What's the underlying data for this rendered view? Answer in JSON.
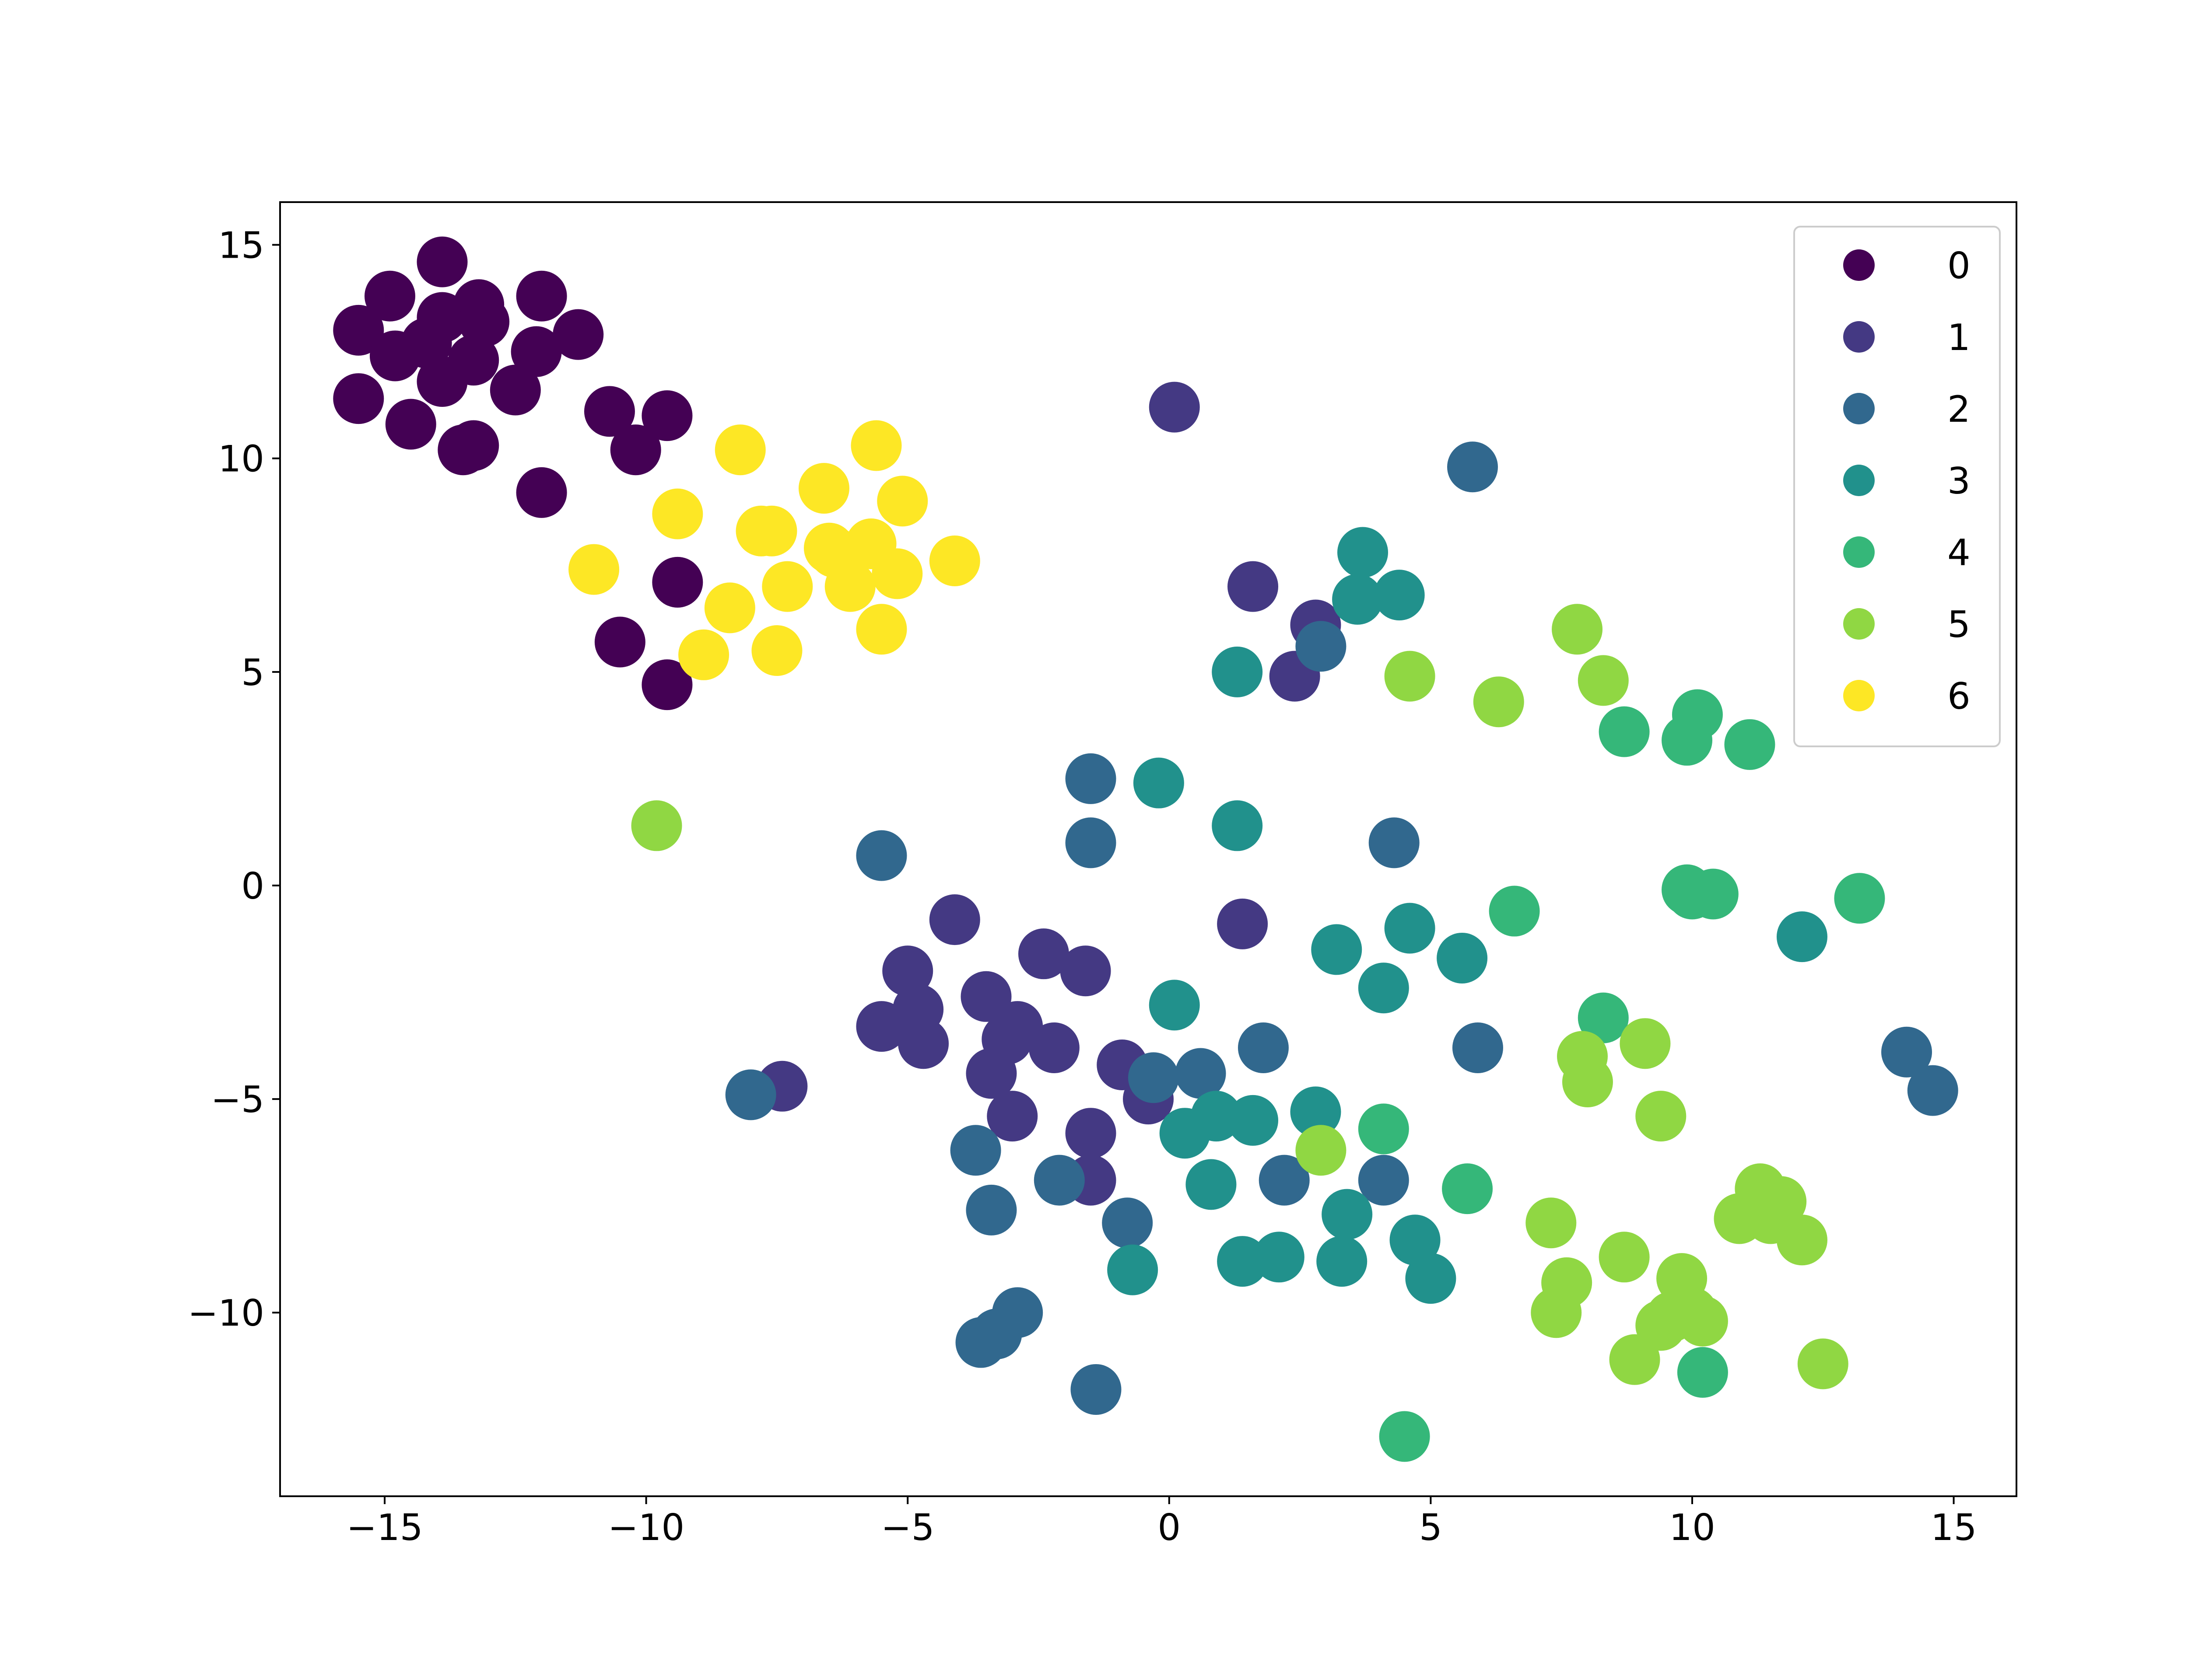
{
  "chart_data": {
    "type": "scatter",
    "title": "",
    "xlabel": "",
    "ylabel": "",
    "xlim": [
      -17,
      16.2
    ],
    "ylim": [
      -14.3,
      16
    ],
    "xticks": [
      -15,
      -10,
      -5,
      0,
      5,
      10,
      15
    ],
    "yticks": [
      -10,
      -5,
      0,
      5,
      10,
      15
    ],
    "xtick_labels": [
      "−15",
      "−10",
      "−5",
      "0",
      "5",
      "10",
      "15"
    ],
    "ytick_labels": [
      "−10",
      "−5",
      "0",
      "5",
      "10",
      "15"
    ],
    "grid": false,
    "legend_position": "top-right",
    "series": [
      {
        "name": "0",
        "color": "#440154",
        "points": [
          [
            -13.9,
            14.6
          ],
          [
            -14.9,
            13.8
          ],
          [
            -13.2,
            13.6
          ],
          [
            -12.0,
            13.8
          ],
          [
            -15.5,
            13.0
          ],
          [
            -13.9,
            13.3
          ],
          [
            -13.1,
            13.2
          ],
          [
            -11.3,
            12.9
          ],
          [
            -14.2,
            12.7
          ],
          [
            -14.8,
            12.4
          ],
          [
            -13.3,
            12.3
          ],
          [
            -12.1,
            12.5
          ],
          [
            -13.9,
            11.8
          ],
          [
            -12.5,
            11.6
          ],
          [
            -15.5,
            11.4
          ],
          [
            -14.5,
            10.8
          ],
          [
            -10.7,
            11.1
          ],
          [
            -9.6,
            11.0
          ],
          [
            -10.2,
            10.2
          ],
          [
            -13.5,
            10.2
          ],
          [
            -13.3,
            10.3
          ],
          [
            -12.0,
            9.2
          ],
          [
            -9.4,
            7.1
          ],
          [
            -10.5,
            5.7
          ],
          [
            -9.6,
            4.7
          ]
        ]
      },
      {
        "name": "1",
        "color": "#443983",
        "points": [
          [
            0.1,
            11.2
          ],
          [
            1.6,
            7.0
          ],
          [
            2.8,
            6.1
          ],
          [
            2.4,
            4.9
          ],
          [
            -7.4,
            -4.7
          ],
          [
            -4.1,
            -0.8
          ],
          [
            -5.0,
            -2.0
          ],
          [
            -4.8,
            -2.9
          ],
          [
            -5.5,
            -3.3
          ],
          [
            -4.7,
            -3.7
          ],
          [
            -3.5,
            -2.6
          ],
          [
            -2.4,
            -1.6
          ],
          [
            -1.6,
            -2.0
          ],
          [
            -2.9,
            -3.3
          ],
          [
            -3.1,
            -3.6
          ],
          [
            -2.2,
            -3.8
          ],
          [
            -3.4,
            -4.4
          ],
          [
            -0.9,
            -4.2
          ],
          [
            -3.0,
            -5.4
          ],
          [
            -0.4,
            -5.0
          ],
          [
            -1.5,
            -5.8
          ],
          [
            -1.5,
            -6.9
          ],
          [
            1.4,
            -0.9
          ]
        ]
      },
      {
        "name": "2",
        "color": "#31688e",
        "points": [
          [
            5.8,
            9.8
          ],
          [
            -1.5,
            2.5
          ],
          [
            -1.5,
            1.0
          ],
          [
            -5.5,
            0.7
          ],
          [
            4.3,
            1.0
          ],
          [
            -8.0,
            -4.9
          ],
          [
            -0.3,
            -4.5
          ],
          [
            0.6,
            -4.4
          ],
          [
            1.8,
            -3.8
          ],
          [
            5.9,
            -3.8
          ],
          [
            14.1,
            -3.9
          ],
          [
            14.6,
            -4.8
          ],
          [
            -3.7,
            -6.2
          ],
          [
            -2.1,
            -6.9
          ],
          [
            2.2,
            -6.9
          ],
          [
            4.1,
            -6.9
          ],
          [
            -3.4,
            -7.6
          ],
          [
            -0.8,
            -7.9
          ],
          [
            -2.9,
            -10.0
          ],
          [
            -3.3,
            -10.5
          ],
          [
            -3.6,
            -10.7
          ],
          [
            -1.4,
            -11.8
          ],
          [
            2.9,
            5.6
          ]
        ]
      },
      {
        "name": "3",
        "color": "#21918c",
        "points": [
          [
            3.7,
            7.8
          ],
          [
            3.6,
            6.7
          ],
          [
            4.4,
            6.8
          ],
          [
            1.3,
            5.0
          ],
          [
            -0.2,
            2.4
          ],
          [
            1.3,
            1.4
          ],
          [
            4.6,
            -1.0
          ],
          [
            3.2,
            -1.5
          ],
          [
            5.6,
            -1.7
          ],
          [
            4.1,
            -2.4
          ],
          [
            0.1,
            -2.8
          ],
          [
            12.1,
            -1.2
          ],
          [
            0.9,
            -5.4
          ],
          [
            0.3,
            -5.8
          ],
          [
            1.6,
            -5.5
          ],
          [
            2.8,
            -5.3
          ],
          [
            0.8,
            -7.0
          ],
          [
            3.4,
            -7.7
          ],
          [
            -0.7,
            -9.0
          ],
          [
            1.4,
            -8.8
          ],
          [
            2.1,
            -8.7
          ],
          [
            3.3,
            -8.8
          ],
          [
            4.7,
            -8.3
          ],
          [
            5.0,
            -9.2
          ]
        ]
      },
      {
        "name": "4",
        "color": "#35b779",
        "points": [
          [
            10.1,
            4.0
          ],
          [
            9.9,
            3.4
          ],
          [
            8.7,
            3.6
          ],
          [
            11.1,
            3.3
          ],
          [
            9.9,
            -0.1
          ],
          [
            10.0,
            -0.2
          ],
          [
            10.4,
            -0.2
          ],
          [
            6.6,
            -0.6
          ],
          [
            13.2,
            -0.3
          ],
          [
            8.3,
            -3.1
          ],
          [
            4.1,
            -5.7
          ],
          [
            5.7,
            -7.1
          ],
          [
            10.2,
            -11.4
          ],
          [
            4.5,
            -12.9
          ]
        ]
      },
      {
        "name": "5",
        "color": "#90d743",
        "points": [
          [
            7.8,
            6.0
          ],
          [
            8.3,
            4.8
          ],
          [
            4.6,
            4.9
          ],
          [
            6.3,
            4.3
          ],
          [
            -9.8,
            1.4
          ],
          [
            9.1,
            -3.7
          ],
          [
            7.9,
            -4.0
          ],
          [
            8.0,
            -4.6
          ],
          [
            9.4,
            -5.4
          ],
          [
            2.9,
            -6.2
          ],
          [
            11.3,
            -7.1
          ],
          [
            10.9,
            -7.8
          ],
          [
            11.5,
            -7.8
          ],
          [
            12.1,
            -8.3
          ],
          [
            11.7,
            -7.4
          ],
          [
            7.3,
            -7.9
          ],
          [
            8.7,
            -8.7
          ],
          [
            9.8,
            -9.2
          ],
          [
            7.6,
            -9.3
          ],
          [
            7.4,
            -10.0
          ],
          [
            9.6,
            -10.1
          ],
          [
            10.0,
            -10.0
          ],
          [
            10.2,
            -10.2
          ],
          [
            9.4,
            -10.3
          ],
          [
            8.9,
            -11.1
          ],
          [
            12.5,
            -11.2
          ]
        ]
      },
      {
        "name": "6",
        "color": "#fde725",
        "points": [
          [
            -8.2,
            10.2
          ],
          [
            -5.6,
            10.3
          ],
          [
            -6.6,
            9.3
          ],
          [
            -5.1,
            9.0
          ],
          [
            -9.4,
            8.7
          ],
          [
            -7.8,
            8.3
          ],
          [
            -7.6,
            8.3
          ],
          [
            -6.4,
            7.8
          ],
          [
            -5.7,
            8.0
          ],
          [
            -6.5,
            7.9
          ],
          [
            -4.1,
            7.6
          ],
          [
            -11.0,
            7.4
          ],
          [
            -7.3,
            7.0
          ],
          [
            -6.1,
            7.0
          ],
          [
            -5.2,
            7.3
          ],
          [
            -8.4,
            6.5
          ],
          [
            -5.5,
            6.0
          ],
          [
            -7.5,
            5.5
          ],
          [
            -8.9,
            5.4
          ]
        ]
      }
    ]
  }
}
